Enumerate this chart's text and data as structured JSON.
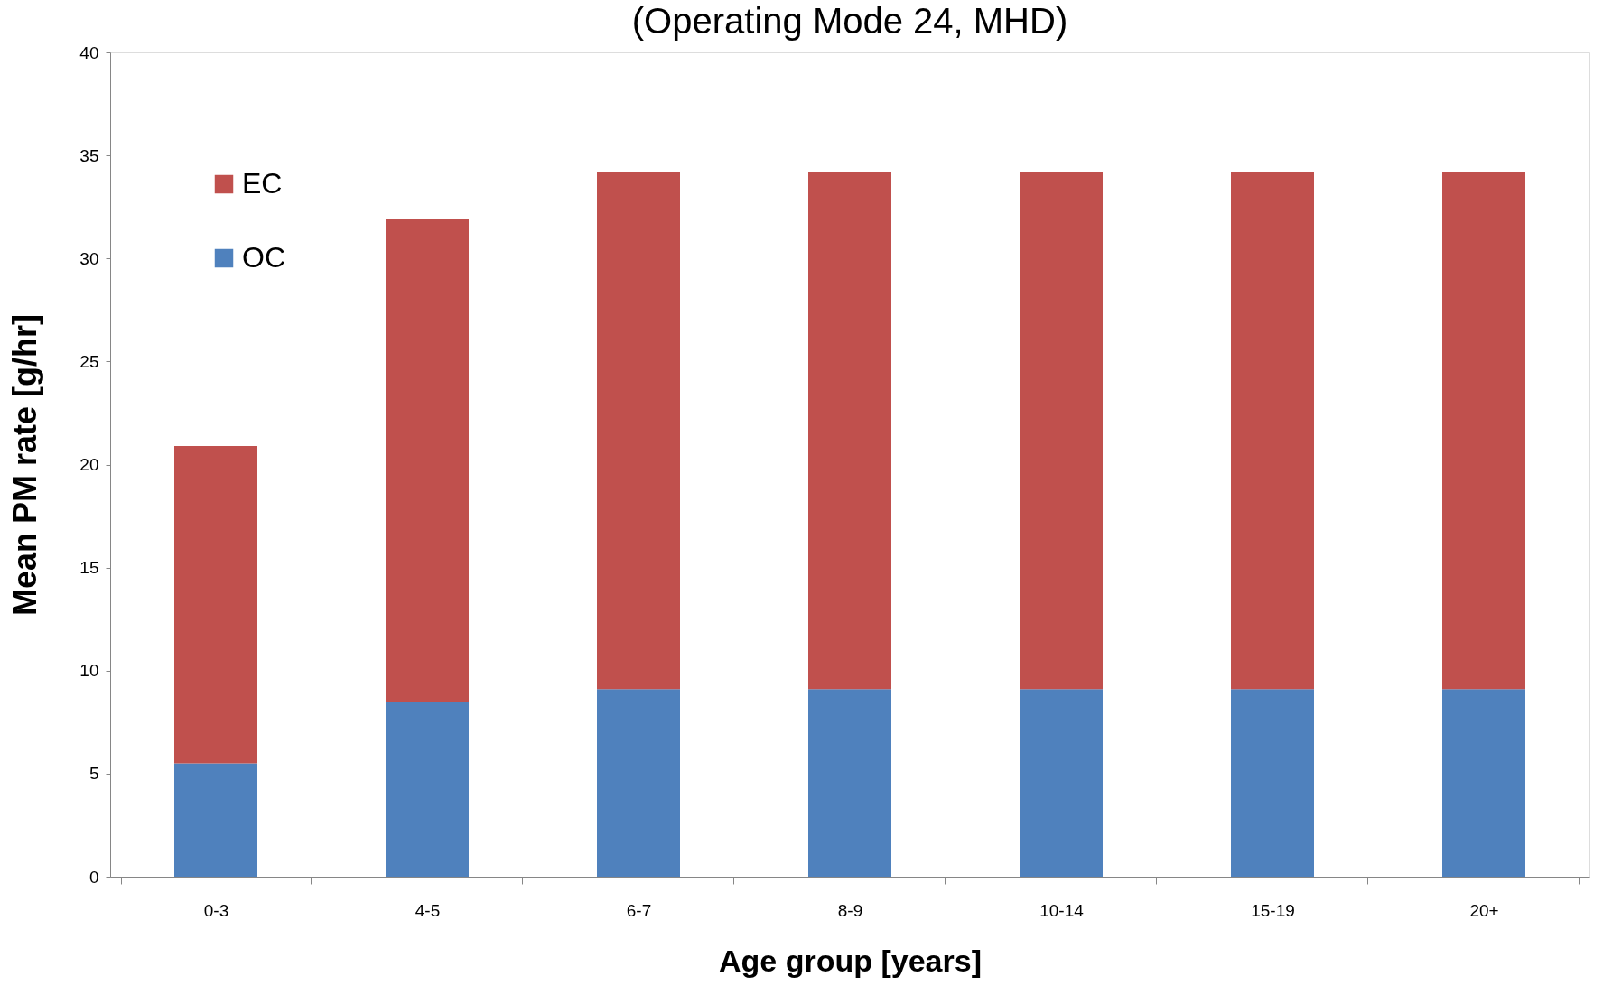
{
  "chart_data": {
    "type": "bar",
    "title": "(Operating Mode 24, MHD)",
    "xlabel": "Age group [years]",
    "ylabel": "Mean PM rate [g/hr]",
    "categories": [
      "0-3",
      "4-5",
      "6-7",
      "8-9",
      "10-14",
      "15-19",
      "20+"
    ],
    "series": [
      {
        "name": "OC",
        "color": "#4f81bd",
        "values": [
          5.5,
          8.5,
          9.1,
          9.1,
          9.1,
          9.1,
          9.1
        ]
      },
      {
        "name": "EC",
        "color": "#c0504d",
        "values": [
          15.4,
          23.4,
          25.1,
          25.1,
          25.1,
          25.1,
          25.1
        ]
      }
    ],
    "stacked": true,
    "ylim": [
      0,
      40
    ],
    "yticks": [
      0,
      5,
      10,
      15,
      20,
      25,
      30,
      35,
      40
    ],
    "grid": false,
    "legend": "top left"
  }
}
